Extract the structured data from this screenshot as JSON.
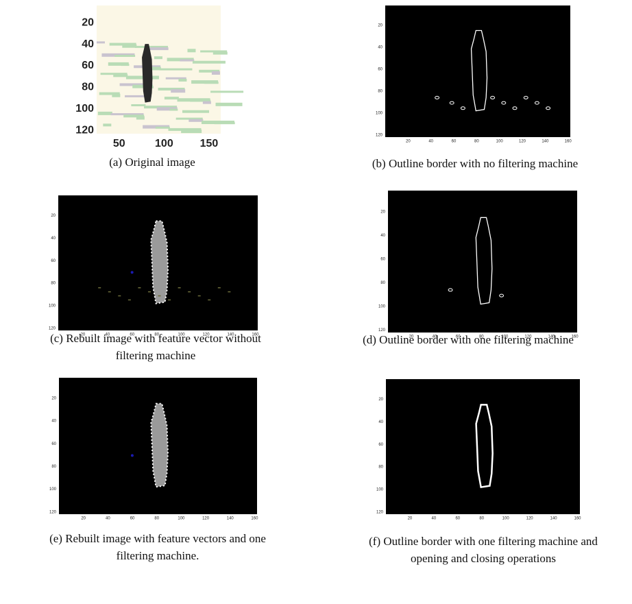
{
  "panels": [
    {
      "caption": [
        "(a) Original image"
      ],
      "xticks": [
        50,
        100,
        150
      ],
      "yticks": [
        20,
        40,
        60,
        80,
        100,
        120
      ],
      "xlim": [
        25,
        163
      ],
      "ylim": [
        4,
        123
      ]
    },
    {
      "caption": [
        "(b) Outline border with no filtering machine"
      ],
      "xticks": [
        20,
        40,
        60,
        80,
        100,
        120,
        140,
        160
      ],
      "yticks": [
        20,
        40,
        60,
        80,
        100,
        120
      ],
      "xlim": [
        0,
        162
      ],
      "ylim": [
        2,
        122
      ]
    },
    {
      "caption": [
        "(c) Rebuilt image with feature vector without",
        "filtering machine"
      ],
      "xticks": [
        20,
        40,
        60,
        80,
        100,
        120,
        140,
        160
      ],
      "yticks": [
        20,
        40,
        60,
        80,
        100,
        120
      ],
      "xlim": [
        0,
        162
      ],
      "ylim": [
        2,
        122
      ]
    },
    {
      "caption": [
        "(d) Outline border with one filtering machine"
      ],
      "xticks": [
        20,
        40,
        60,
        80,
        100,
        120,
        140,
        160
      ],
      "yticks": [
        20,
        40,
        60,
        80,
        100,
        120
      ],
      "xlim": [
        0,
        162
      ],
      "ylim": [
        2,
        122
      ]
    },
    {
      "caption": [
        "(e) Rebuilt image with feature vectors and one",
        "filtering machine."
      ],
      "xticks": [
        20,
        40,
        60,
        80,
        100,
        120,
        140,
        160
      ],
      "yticks": [
        20,
        40,
        60,
        80,
        100,
        120
      ],
      "xlim": [
        0,
        162
      ],
      "ylim": [
        2,
        122
      ]
    },
    {
      "caption": [
        "(f) Outline border with one filtering machine and",
        "opening and closing operations"
      ],
      "xticks": [
        20,
        40,
        60,
        80,
        100,
        120,
        140,
        160
      ],
      "yticks": [
        20,
        40,
        60,
        80,
        100,
        120
      ],
      "xlim": [
        0,
        162
      ],
      "ylim": [
        2,
        122
      ]
    }
  ]
}
